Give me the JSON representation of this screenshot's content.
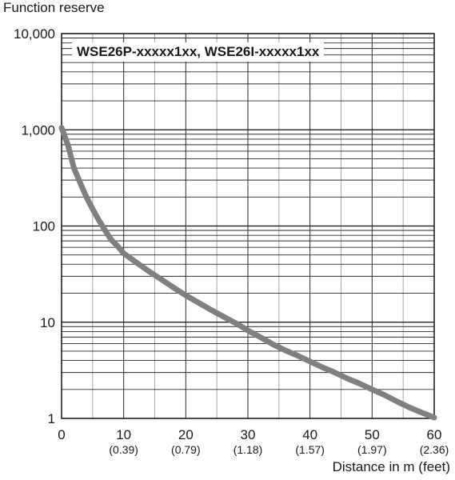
{
  "chart_data": {
    "type": "line",
    "title": "WSE26P-xxxxx1xx, WSE26I-xxxxx1xx",
    "ylabel": "Function reserve",
    "xlabel": "Distance in m (feet)",
    "y_scale": "log",
    "ylim": [
      1,
      10000
    ],
    "xlim": [
      0,
      60
    ],
    "grid": true,
    "y_ticks": [
      {
        "value": 1,
        "label": "1"
      },
      {
        "value": 10,
        "label": "10"
      },
      {
        "value": 100,
        "label": "100"
      },
      {
        "value": 1000,
        "label": "1,000"
      },
      {
        "value": 10000,
        "label": "10,000"
      }
    ],
    "x_ticks": [
      {
        "value": 0,
        "label": "0",
        "sublabel": ""
      },
      {
        "value": 10,
        "label": "10",
        "sublabel": "(0.39)"
      },
      {
        "value": 20,
        "label": "20",
        "sublabel": "(0.79)"
      },
      {
        "value": 30,
        "label": "30",
        "sublabel": "(1.18)"
      },
      {
        "value": 40,
        "label": "40",
        "sublabel": "(1.57)"
      },
      {
        "value": 50,
        "label": "50",
        "sublabel": "(1.97)"
      },
      {
        "value": 60,
        "label": "60",
        "sublabel": "(2.36)"
      }
    ],
    "series": [
      {
        "color": "#808080",
        "points": [
          [
            0,
            1050
          ],
          [
            1,
            700
          ],
          [
            2,
            400
          ],
          [
            3,
            280
          ],
          [
            4,
            200
          ],
          [
            5,
            150
          ],
          [
            6,
            115
          ],
          [
            7,
            90
          ],
          [
            8,
            72
          ],
          [
            9,
            62
          ],
          [
            10,
            52
          ],
          [
            12,
            42
          ],
          [
            14,
            34
          ],
          [
            16,
            28
          ],
          [
            18,
            23
          ],
          [
            20,
            19
          ],
          [
            22,
            16
          ],
          [
            24,
            13.5
          ],
          [
            26,
            11.5
          ],
          [
            28,
            9.8
          ],
          [
            30,
            8.2
          ],
          [
            32,
            7
          ],
          [
            34,
            5.9
          ],
          [
            36,
            5.1
          ],
          [
            38,
            4.5
          ],
          [
            40,
            3.9
          ],
          [
            42,
            3.4
          ],
          [
            44,
            3
          ],
          [
            46,
            2.6
          ],
          [
            48,
            2.3
          ],
          [
            50,
            2
          ],
          [
            52,
            1.75
          ],
          [
            54,
            1.5
          ],
          [
            56,
            1.3
          ],
          [
            58,
            1.15
          ],
          [
            60,
            1.02
          ]
        ]
      }
    ]
  }
}
